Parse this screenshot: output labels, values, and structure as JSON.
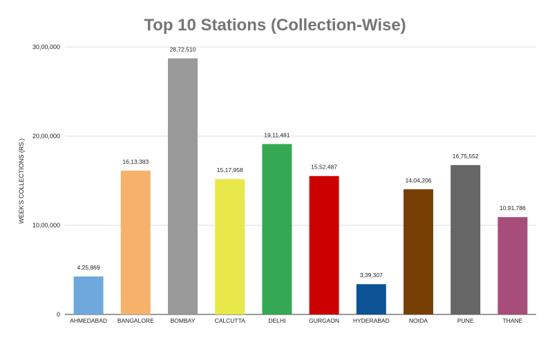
{
  "chart_data": {
    "type": "bar",
    "title": "Top 10 Stations (Collection-Wise)",
    "xlabel": "",
    "ylabel": "WEEK'S COLLECTIONS (RS.)",
    "ylim": [
      0,
      3000000
    ],
    "yticks": [
      0,
      1000000,
      2000000,
      3000000
    ],
    "ytick_labels": [
      "0",
      "10,00,000",
      "20,00,000",
      "30,00,000"
    ],
    "grid": true,
    "categories": [
      "AHMEDABAD",
      "BANGALORE",
      "BOMBAY",
      "CALCUTTA",
      "DELHI",
      "GURGAON",
      "HYDERABAD",
      "NOIDA",
      "PUNE",
      "THANE"
    ],
    "values": [
      425869,
      1613383,
      2872510,
      1517958,
      1911481,
      1552487,
      339307,
      1404206,
      1675552,
      1091786
    ],
    "value_labels": [
      "4,25,869",
      "16,13,383",
      "28,72,510",
      "15,17,958",
      "19,11,481",
      "15,52,487",
      "3,39,307",
      "14,04,206",
      "16,75,552",
      "10,91,786"
    ],
    "colors": [
      "#6fa8dc",
      "#f6b26b",
      "#999999",
      "#e8e84a",
      "#34a853",
      "#cc0000",
      "#0b5394",
      "#783f04",
      "#666666",
      "#a64d79"
    ]
  }
}
